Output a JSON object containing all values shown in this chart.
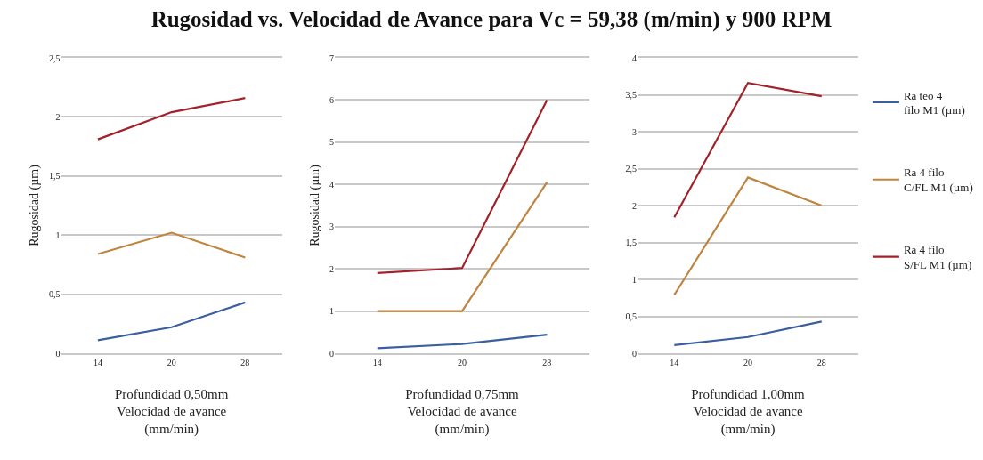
{
  "chart_data": [
    {
      "type": "line",
      "title": "Rugosidad vs. Velocidad de Avance para Vc = 59,38 (m/min) y 900 RPM",
      "xlabel": "Profundidad 0,50mm\nVelocidad de avance\n(mm/min)",
      "ylabel": "Rugosidad (µm)",
      "categories": [
        "14",
        "20",
        "28"
      ],
      "series": [
        {
          "color": "#3a5f9e",
          "values": [
            0.11,
            0.22,
            0.43
          ]
        },
        {
          "color": "#c0843f",
          "values": [
            0.84,
            1.02,
            0.81
          ]
        },
        {
          "color": "#a3222a",
          "values": [
            1.81,
            2.04,
            2.16
          ]
        }
      ],
      "ylim": [
        0,
        2.5
      ],
      "yticks": [
        0,
        {
          "value": 0.5,
          "label": "0,5"
        },
        1,
        {
          "value": 1.5,
          "label": "1,5"
        },
        2,
        {
          "value": 2.5,
          "label": "2,5"
        }
      ],
      "grid": "y"
    },
    {
      "type": "line",
      "xlabel": "Profundidad 0,75mm\nVelocidad de avance\n(mm/min)",
      "ylabel": "Rugosidad (µm)",
      "categories": [
        "14",
        "20",
        "28"
      ],
      "series": [
        {
          "color": "#3a5f9e",
          "values": [
            0.12,
            0.22,
            0.44
          ]
        },
        {
          "color": "#c0843f",
          "values": [
            1.0,
            1.0,
            4.05
          ]
        },
        {
          "color": "#a3222a",
          "values": [
            1.9,
            2.02,
            6.0
          ]
        }
      ],
      "ylim": [
        0,
        7
      ],
      "yticks": [
        0,
        1,
        2,
        3,
        4,
        5,
        6,
        7
      ],
      "grid": "y"
    },
    {
      "type": "line",
      "xlabel": "Profundidad 1,00mm\nVelocidad de avance\n(mm/min)",
      "categories": [
        "14",
        "20",
        "28"
      ],
      "series": [
        {
          "name": "Ra teo 4 filo M1 (µm)",
          "color": "#3a5f9e",
          "values": [
            0.11,
            0.22,
            0.43
          ]
        },
        {
          "name": "Ra 4 filo C/FL M1 (µm)",
          "color": "#c0843f",
          "values": [
            0.79,
            2.38,
            2.0
          ]
        },
        {
          "name": "Ra 4 filo S/FL M1 (µm)",
          "color": "#a3222a",
          "values": [
            1.84,
            3.66,
            3.48
          ]
        }
      ],
      "ylim": [
        0,
        4
      ],
      "yticks": [
        0,
        {
          "value": 0.5,
          "label": "0,5"
        },
        1,
        {
          "value": 1.5,
          "label": "1,5"
        },
        2,
        {
          "value": 2.5,
          "label": "2,5"
        },
        3,
        {
          "value": 3.5,
          "label": "3,5"
        },
        4
      ],
      "grid": "y",
      "legend": "right"
    }
  ]
}
